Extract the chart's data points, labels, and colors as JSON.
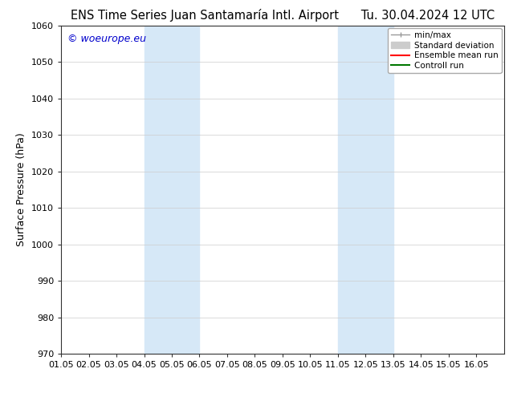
{
  "title_left": "ENS Time Series Juan Santamaría Intl. Airport",
  "title_right": "Tu. 30.04.2024 12 UTC",
  "ylabel": "Surface Pressure (hPa)",
  "watermark": "© woeurope.eu",
  "xlim": [
    0,
    16
  ],
  "ylim": [
    970,
    1060
  ],
  "yticks": [
    970,
    980,
    990,
    1000,
    1010,
    1020,
    1030,
    1040,
    1050,
    1060
  ],
  "xtick_labels": [
    "01.05",
    "02.05",
    "03.05",
    "04.05",
    "05.05",
    "06.05",
    "07.05",
    "08.05",
    "09.05",
    "10.05",
    "11.05",
    "12.05",
    "13.05",
    "14.05",
    "15.05",
    "16.05"
  ],
  "xtick_positions": [
    0,
    1,
    2,
    3,
    4,
    5,
    6,
    7,
    8,
    9,
    10,
    11,
    12,
    13,
    14,
    15
  ],
  "shaded_regions": [
    {
      "xmin": 3.0,
      "xmax": 5.0,
      "color": "#d6e8f7"
    },
    {
      "xmin": 10.0,
      "xmax": 12.0,
      "color": "#d6e8f7"
    }
  ],
  "background_color": "#ffffff",
  "grid_color": "#cccccc",
  "title_fontsize": 10.5,
  "tick_fontsize": 8,
  "ylabel_fontsize": 9,
  "watermark_color": "#0000cc",
  "watermark_fontsize": 9,
  "legend_fontsize": 7.5
}
